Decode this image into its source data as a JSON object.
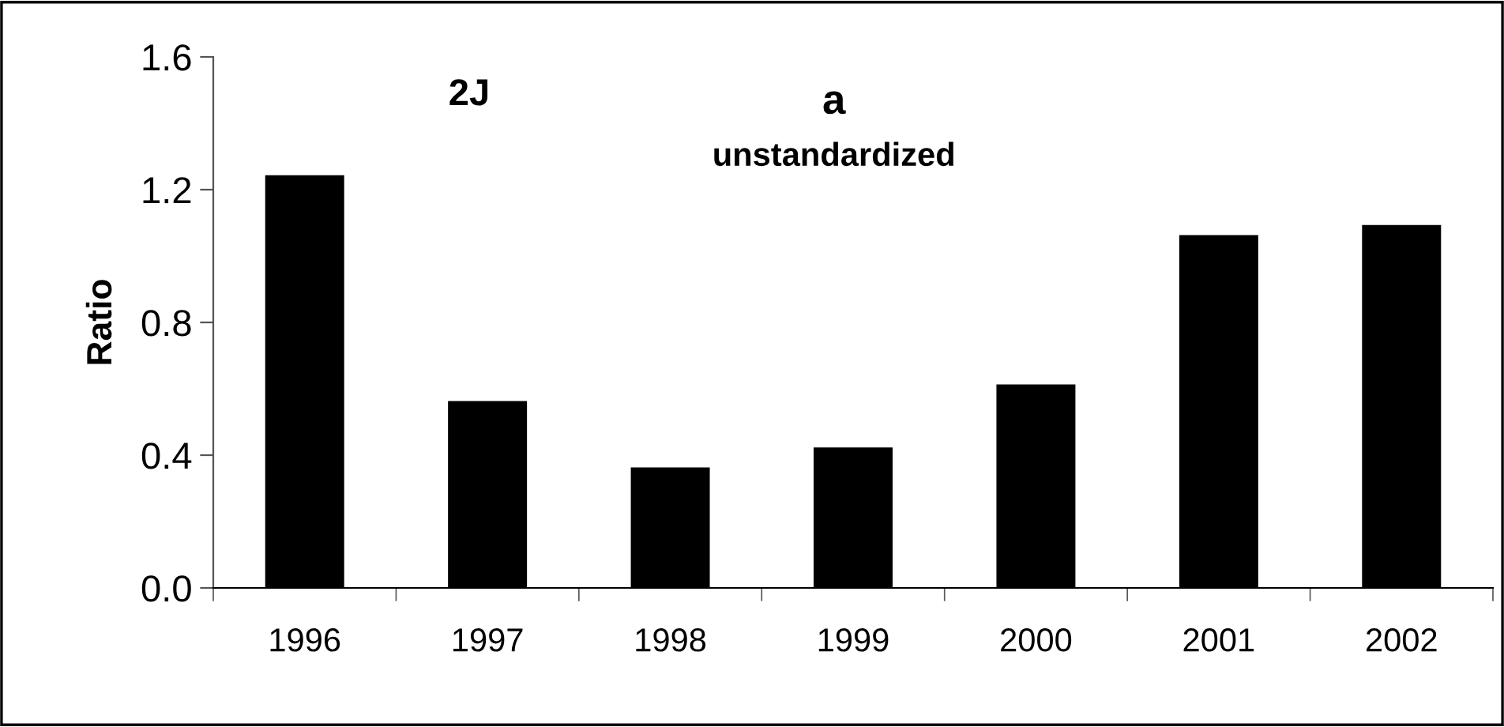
{
  "chart_data": {
    "type": "bar",
    "categories": [
      "1996",
      "1997",
      "1998",
      "1999",
      "2000",
      "2001",
      "2002"
    ],
    "values": [
      1.24,
      0.56,
      0.36,
      0.42,
      0.61,
      1.06,
      1.09
    ],
    "color": "#000000",
    "ylabel": "Ratio",
    "ylim": [
      0,
      1.6
    ],
    "yticks": [
      {
        "value": 0,
        "label": "0.0"
      },
      {
        "value": 0.4,
        "label": "0.4"
      },
      {
        "value": 0.8,
        "label": "0.8"
      },
      {
        "value": 1.2,
        "label": "1.2"
      },
      {
        "value": 1.6,
        "label": "1.6"
      }
    ],
    "annotations": [
      "2J",
      "a",
      "unstandardized"
    ],
    "grid": false,
    "legend": false
  }
}
